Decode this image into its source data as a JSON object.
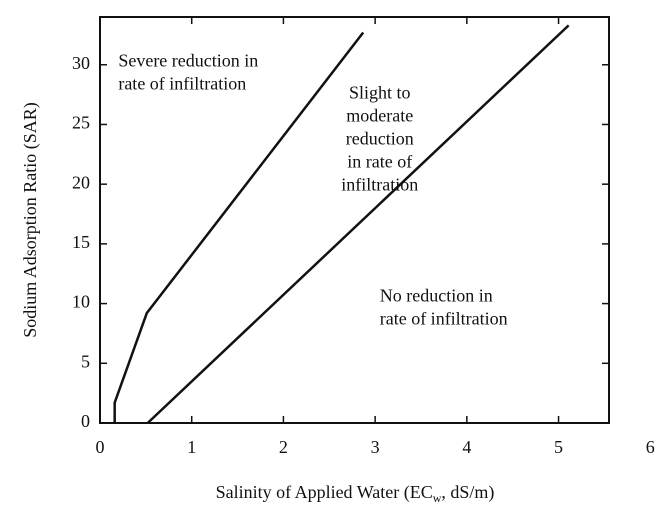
{
  "chart_data": {
    "type": "line",
    "ylabel": "Sodium Adsorption Ratio (SAR)",
    "xlabel": [
      "Salinity of Applied Water (EC",
      "w",
      ", dS/m)"
    ],
    "xlim": [
      0,
      5.55
    ],
    "xticks": [
      0,
      1,
      2,
      3,
      4,
      5,
      6
    ],
    "ylim": [
      0,
      34
    ],
    "yticks": [
      0,
      5,
      10,
      15,
      20,
      25,
      30
    ],
    "series": [
      {
        "color": "#111111",
        "x": [
          0.16,
          0.16,
          0.51,
          2.87
        ],
        "values": [
          0,
          1.7,
          9.2,
          32.7
        ]
      },
      {
        "color": "#111111",
        "x": [
          0.52,
          5.11
        ],
        "values": [
          0,
          33.3
        ]
      }
    ],
    "annotations": [
      {
        "lines": [
          "Severe reduction in",
          "rate of infiltration"
        ],
        "x": 0.2,
        "y": 30.2,
        "anchor": "start"
      },
      {
        "lines": [
          "Slight to",
          "moderate",
          "reduction",
          "in rate of",
          "infiltration"
        ],
        "x": 3.05,
        "y": 27.5,
        "anchor": "middle"
      },
      {
        "lines": [
          "No reduction in",
          "rate of infiltration"
        ],
        "x": 3.05,
        "y": 10.5,
        "anchor": "start"
      }
    ]
  }
}
